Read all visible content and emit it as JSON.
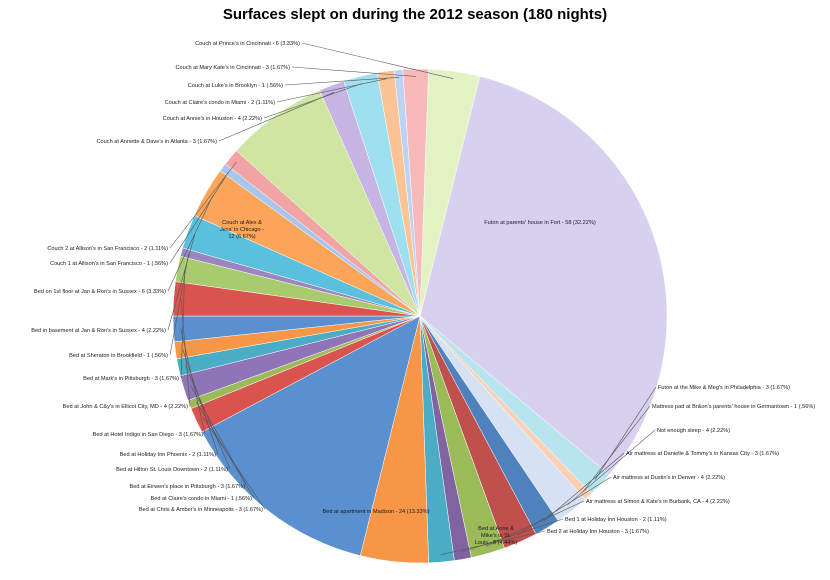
{
  "chart_data": {
    "type": "pie",
    "title": "Surfaces slept on during the 2012 season (180 nights)",
    "slices": [
      {
        "label": "Futon at parents' house in Fort - 58 (32.22%)",
        "value": 58,
        "color": "#d9cfef"
      },
      {
        "label": "Futon at the Mike & Meg's in Philadelphia - 3 (1.67%)",
        "value": 3,
        "color": "#b7e4ef"
      },
      {
        "label": "Mattress pad at Br&on's parents' house in Germantown - 1 (.56%)",
        "value": 1,
        "color": "#fbd0b4"
      },
      {
        "label": "Not enough sleep - 4 (2.22%)",
        "value": 4,
        "color": "#d6e2f4"
      },
      {
        "label": "Air mattress at Danielle & Tommy's in Kansas City - 3 (1.67%)",
        "value": 3,
        "color": "#4f81bd"
      },
      {
        "label": "Air mattress at Dustin's in Denver - 4 (2.22%)",
        "value": 4,
        "color": "#c0504d"
      },
      {
        "label": "Air mattress at Simon & Kate's in Burbank, CA - 4 (2.22%)",
        "value": 4,
        "color": "#9bbb59"
      },
      {
        "label": "Bed 1 at Holiday Inn Houston - 2 (1.11%)",
        "value": 2,
        "color": "#8064a2"
      },
      {
        "label": "Bed 2 at Holiday Inn Houston - 3 (1.67%)",
        "value": 3,
        "color": "#4bacc6"
      },
      {
        "label": "Bed at Anne & Mike's in St. Louis - 8 (4.44%)",
        "value": 8,
        "color": "#f79646"
      },
      {
        "label": "Bed at apartment in Madison - 24 (13.33%)",
        "value": 24,
        "color": "#5a8fd0"
      },
      {
        "label": "Bed at Chris & Amber's in Minneapolis - 3 (1.67%)",
        "value": 3,
        "color": "#d9534f"
      },
      {
        "label": "Bed at Claire's condo in Miami - 1 (.56%)",
        "value": 1,
        "color": "#9bbb59"
      },
      {
        "label": "Bed at Eirwen's place in Pittsburgh - 3 (1.67%)",
        "value": 3,
        "color": "#8f74b8"
      },
      {
        "label": "Bed at Hilton St. Louis Downtown - 2 (1.11%)",
        "value": 2,
        "color": "#4bacc6"
      },
      {
        "label": "Bed at Holiday Inn Phoenix - 2 (1.11%)",
        "value": 2,
        "color": "#f79646"
      },
      {
        "label": "Bed at Hotel Indigo in San Diego - 3 (1.67%)",
        "value": 3,
        "color": "#5a8fd0"
      },
      {
        "label": "Bed at John & C&y's in Ellicot City, MD - 4 (2.22%)",
        "value": 4,
        "color": "#d9534f"
      },
      {
        "label": "Bed at Mark's in Pittsburgh - 3 (1.67%)",
        "value": 3,
        "color": "#a8cb6e"
      },
      {
        "label": "Bed at Sheraton in Brookfield - 1 (.56%)",
        "value": 1,
        "color": "#9b86c0"
      },
      {
        "label": "Bed in basement at Jan & Ron's in Sussex - 4 (2.22%)",
        "value": 4,
        "color": "#5bc0de"
      },
      {
        "label": "Bed on 1st floor at Jan & Ron's in Sussex - 6 (3.33%)",
        "value": 6,
        "color": "#fba55a"
      },
      {
        "label": "Couch 1 at Allison's in San Francisco - 1 (.56%)",
        "value": 1,
        "color": "#a9c7ee"
      },
      {
        "label": "Couch 2 at Allison's in San Francisco - 2 (1.11%)",
        "value": 2,
        "color": "#f2a3a3"
      },
      {
        "label": "Couch at Alex & Jess' in Chicago - 12 (6.67%)",
        "value": 12,
        "color": "#cfe5a2"
      },
      {
        "label": "Couch at Annette & Dave's in Atlanta - 3 (1.67%)",
        "value": 3,
        "color": "#c6b5e3"
      },
      {
        "label": "Couch at Annie's in Houston - 4 (2.22%)",
        "value": 4,
        "color": "#9edff0"
      },
      {
        "label": "Couch at Claire's condo in Miami - 2 (1.11%)",
        "value": 2,
        "color": "#fcc395"
      },
      {
        "label": "Couch at Luke's in Brooklyn - 1 (.56%)",
        "value": 1,
        "color": "#bdd3f3"
      },
      {
        "label": "Couch at Mary Kate's in Cincinnati - 3 (1.67%)",
        "value": 3,
        "color": "#f7b9b9"
      },
      {
        "label": "Couch at Prince's in Cincinnati - 6 (3.33%)",
        "value": 6,
        "color": "#e3f2c4"
      }
    ]
  }
}
